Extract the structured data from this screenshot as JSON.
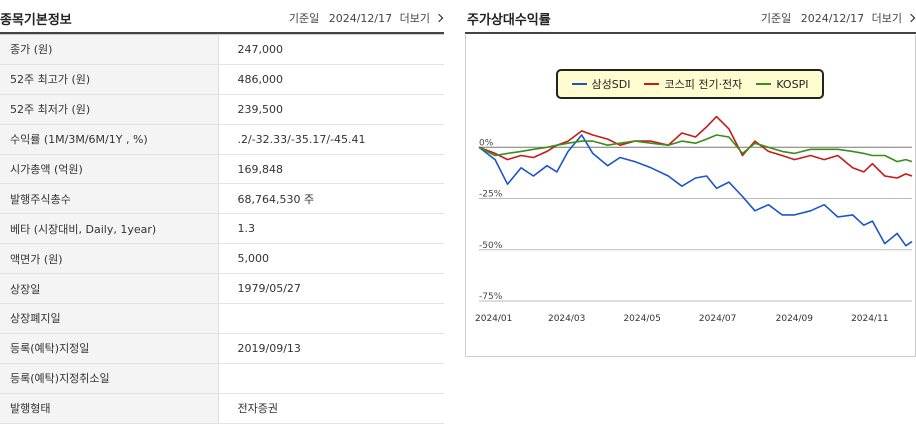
{
  "basic_info": {
    "title": "종목기본정보",
    "date_label": "기준일",
    "date_value": "2024/12/17",
    "more_label": "더보기",
    "rows": [
      {
        "key": "종가 (원)",
        "value": "247,000"
      },
      {
        "key": "52주 최고가 (원)",
        "value": "486,000"
      },
      {
        "key": "52주 최저가 (원)",
        "value": "239,500"
      },
      {
        "key": "수익률 (1M/3M/6M/1Y , %)",
        "value": ".2/-32.33/-35.17/-45.41"
      },
      {
        "key": "시가총액 (억원)",
        "value": "169,848"
      },
      {
        "key": "발행주식총수",
        "value": "68,764,530 주"
      },
      {
        "key": "베타 (시장대비, Daily, 1year)",
        "value": "1.3"
      },
      {
        "key": "액면가 (원)",
        "value": "5,000"
      },
      {
        "key": "상장일",
        "value": "1979/05/27"
      },
      {
        "key": "상장폐지일",
        "value": ""
      },
      {
        "key": "등록(예탁)지정일",
        "value": "2019/09/13"
      },
      {
        "key": "등록(예탁)지정취소일",
        "value": ""
      },
      {
        "key": "발행형태",
        "value": "전자증권"
      }
    ]
  },
  "returns_chart": {
    "title": "주가상대수익률",
    "date_label": "기준일",
    "date_value": "2024/12/17",
    "more_label": "더보기"
  },
  "chart_data": {
    "type": "line",
    "x_ticks": [
      "2024/01",
      "2024/03",
      "2024/05",
      "2024/07",
      "2024/09",
      "2024/11"
    ],
    "y_ticks": [
      "0%",
      "-25%",
      "-50%",
      "-75%"
    ],
    "ylim": [
      -75,
      6
    ],
    "grid": true,
    "legend_position": "top-center",
    "series": [
      {
        "name": "삼성SDI",
        "color": "#1a56c8",
        "x": [
          "2024-01-02",
          "2024-01-15",
          "2024-01-25",
          "2024-02-05",
          "2024-02-15",
          "2024-02-26",
          "2024-03-05",
          "2024-03-14",
          "2024-03-25",
          "2024-04-03",
          "2024-04-15",
          "2024-04-25",
          "2024-05-07",
          "2024-05-20",
          "2024-06-03",
          "2024-06-14",
          "2024-06-25",
          "2024-07-04",
          "2024-07-12",
          "2024-07-22",
          "2024-08-02",
          "2024-08-12",
          "2024-08-23",
          "2024-09-03",
          "2024-09-13",
          "2024-09-26",
          "2024-10-07",
          "2024-10-18",
          "2024-10-30",
          "2024-11-08",
          "2024-11-15",
          "2024-11-25",
          "2024-12-05",
          "2024-12-12",
          "2024-12-17"
        ],
        "values": [
          0,
          -6,
          -18,
          -10,
          -14,
          -9,
          -12,
          -2,
          6,
          -3,
          -9,
          -5,
          -7,
          -10,
          -14,
          -19,
          -15,
          -14,
          -20,
          -17,
          -24,
          -31,
          -28,
          -33,
          -33,
          -31,
          -28,
          -34,
          -33,
          -38,
          -36,
          -47,
          -42,
          -48,
          -46
        ]
      },
      {
        "name": "코스피 전기·전자",
        "color": "#c81a1a",
        "x": [
          "2024-01-02",
          "2024-01-15",
          "2024-01-25",
          "2024-02-05",
          "2024-02-15",
          "2024-02-26",
          "2024-03-05",
          "2024-03-14",
          "2024-03-25",
          "2024-04-03",
          "2024-04-15",
          "2024-04-25",
          "2024-05-07",
          "2024-05-20",
          "2024-06-03",
          "2024-06-14",
          "2024-06-25",
          "2024-07-04",
          "2024-07-12",
          "2024-07-22",
          "2024-08-02",
          "2024-08-12",
          "2024-08-23",
          "2024-09-03",
          "2024-09-13",
          "2024-09-26",
          "2024-10-07",
          "2024-10-18",
          "2024-10-30",
          "2024-11-08",
          "2024-11-15",
          "2024-11-25",
          "2024-12-05",
          "2024-12-12",
          "2024-12-17"
        ],
        "values": [
          0,
          -3,
          -6,
          -4,
          -5,
          -2,
          1,
          3,
          8,
          6,
          4,
          1,
          3,
          3,
          1,
          7,
          5,
          10,
          15,
          9,
          -4,
          3,
          -2,
          -4,
          -6,
          -4,
          -6,
          -4,
          -10,
          -12,
          -8,
          -14,
          -15,
          -13,
          -14
        ]
      },
      {
        "name": "KOSPI",
        "color": "#3d8c1c",
        "x": [
          "2024-01-02",
          "2024-01-15",
          "2024-01-25",
          "2024-02-05",
          "2024-02-15",
          "2024-02-26",
          "2024-03-05",
          "2024-03-14",
          "2024-03-25",
          "2024-04-03",
          "2024-04-15",
          "2024-04-25",
          "2024-05-07",
          "2024-05-20",
          "2024-06-03",
          "2024-06-14",
          "2024-06-25",
          "2024-07-04",
          "2024-07-12",
          "2024-07-22",
          "2024-08-02",
          "2024-08-12",
          "2024-08-23",
          "2024-09-03",
          "2024-09-13",
          "2024-09-26",
          "2024-10-07",
          "2024-10-18",
          "2024-10-30",
          "2024-11-08",
          "2024-11-15",
          "2024-11-25",
          "2024-12-05",
          "2024-12-12",
          "2024-12-17"
        ],
        "values": [
          0,
          -4,
          -3,
          -2,
          -1,
          0,
          1,
          2,
          3,
          3,
          1,
          2,
          3,
          2,
          1,
          3,
          2,
          4,
          6,
          5,
          -3,
          2,
          0,
          -2,
          -3,
          -1,
          -1,
          -1,
          -2,
          -3,
          -4,
          -4,
          -7,
          -6,
          -7
        ]
      }
    ]
  }
}
